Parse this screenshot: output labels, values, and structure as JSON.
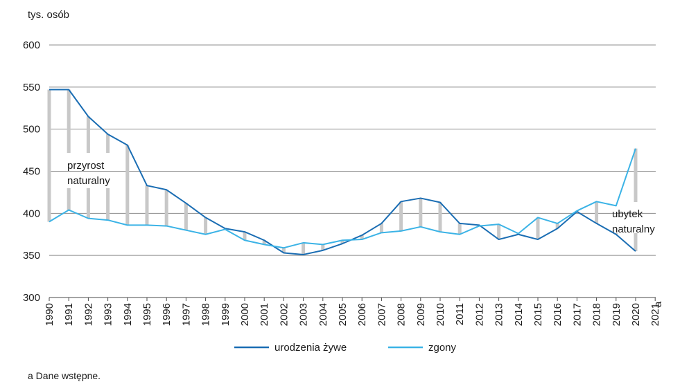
{
  "chart_data": {
    "type": "line",
    "title": "",
    "ylabel": "tys. osób",
    "xlabel": "",
    "ylim": [
      300,
      600
    ],
    "yticks": [
      300,
      350,
      400,
      450,
      500,
      550,
      600
    ],
    "grid": true,
    "categories": [
      "1990",
      "1991",
      "1992",
      "1993",
      "1994",
      "1995",
      "1996",
      "1997",
      "1998",
      "1999",
      "2000",
      "2001",
      "2002",
      "2003",
      "2004",
      "2005",
      "2006",
      "2007",
      "2008",
      "2009",
      "2010",
      "2011",
      "2012",
      "2013",
      "2014",
      "2015",
      "2016",
      "2017",
      "2018",
      "2019",
      "2020",
      "2021"
    ],
    "footnote_marker": "a",
    "series": [
      {
        "name": "urodzenia żywe",
        "color": "#1a6db3",
        "values": [
          547,
          547,
          515,
          494,
          481,
          433,
          428,
          412,
          395,
          382,
          378,
          368,
          353,
          351,
          356,
          364,
          374,
          388,
          414,
          418,
          413,
          388,
          386,
          369,
          375,
          369,
          382,
          402,
          388,
          375,
          355,
          null
        ]
      },
      {
        "name": "zgony",
        "color": "#3bb3e6",
        "values": [
          390,
          404,
          394,
          392,
          386,
          386,
          385,
          380,
          375,
          381,
          368,
          363,
          359,
          365,
          363,
          368,
          369,
          377,
          379,
          384,
          378,
          375,
          385,
          387,
          376,
          395,
          388,
          403,
          414,
          409,
          477,
          null
        ]
      }
    ],
    "difference_bar_color": "#c8c8c8",
    "annotations": [
      {
        "text": [
          "przyrost",
          "naturalny"
        ]
      },
      {
        "text": [
          "ubytek",
          "naturalny"
        ]
      }
    ],
    "legend": {
      "position": "bottom",
      "entries": [
        "urodzenia żywe",
        "zgony"
      ]
    },
    "footnote": "a Dane wstępne."
  }
}
